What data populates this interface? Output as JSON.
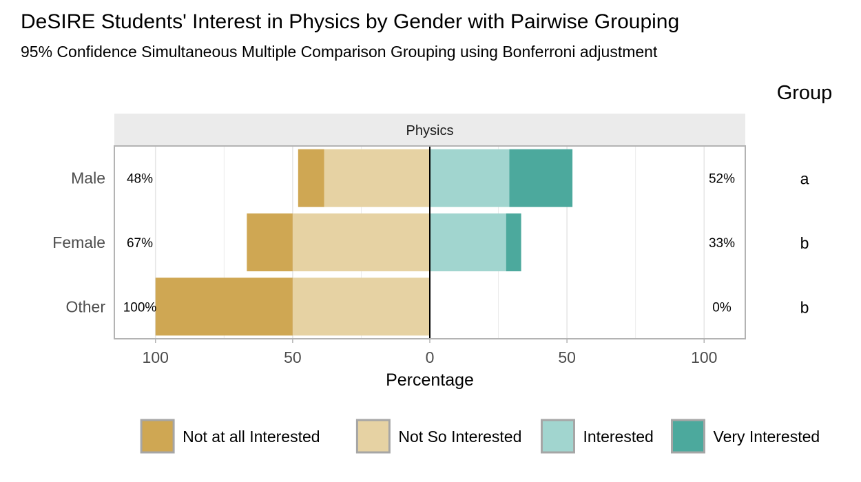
{
  "chart_data": {
    "type": "bar",
    "subtype": "diverging-stacked-likert",
    "title": "DeSIRE Students' Interest in Physics by Gender with Pairwise Grouping",
    "subtitle": "95% Confidence Simultaneous Multiple Comparison Grouping using Bonferroni adjustment",
    "panel_label": "Physics",
    "xlabel": "Percentage",
    "ylabel": "",
    "xlim": [
      -115,
      115
    ],
    "x_ticks": [
      {
        "value": -100,
        "label": "100"
      },
      {
        "value": -50,
        "label": "50"
      },
      {
        "value": 0,
        "label": "0"
      },
      {
        "value": 50,
        "label": "50"
      },
      {
        "value": 100,
        "label": "100"
      }
    ],
    "grid": true,
    "legend_position": "bottom",
    "group_header": "Group",
    "categories": [
      "Male",
      "Female",
      "Other"
    ],
    "series": [
      {
        "name": "Not at all Interested",
        "side": "negative",
        "color": "#CFA753",
        "values": [
          9.5,
          16.7,
          50
        ]
      },
      {
        "name": "Not So Interested",
        "side": "negative",
        "color": "#E6D2A3",
        "values": [
          38.5,
          50,
          50
        ]
      },
      {
        "name": "Interested",
        "side": "positive",
        "color": "#A1D5CF",
        "values": [
          29,
          27.8,
          0
        ]
      },
      {
        "name": "Very Interested",
        "side": "positive",
        "color": "#4CA99D",
        "values": [
          23,
          5.5,
          0
        ]
      }
    ],
    "left_totals": [
      "48%",
      "67%",
      "100%"
    ],
    "right_totals": [
      "52%",
      "33%",
      "0%"
    ],
    "groups": [
      "a",
      "b",
      "b"
    ]
  }
}
